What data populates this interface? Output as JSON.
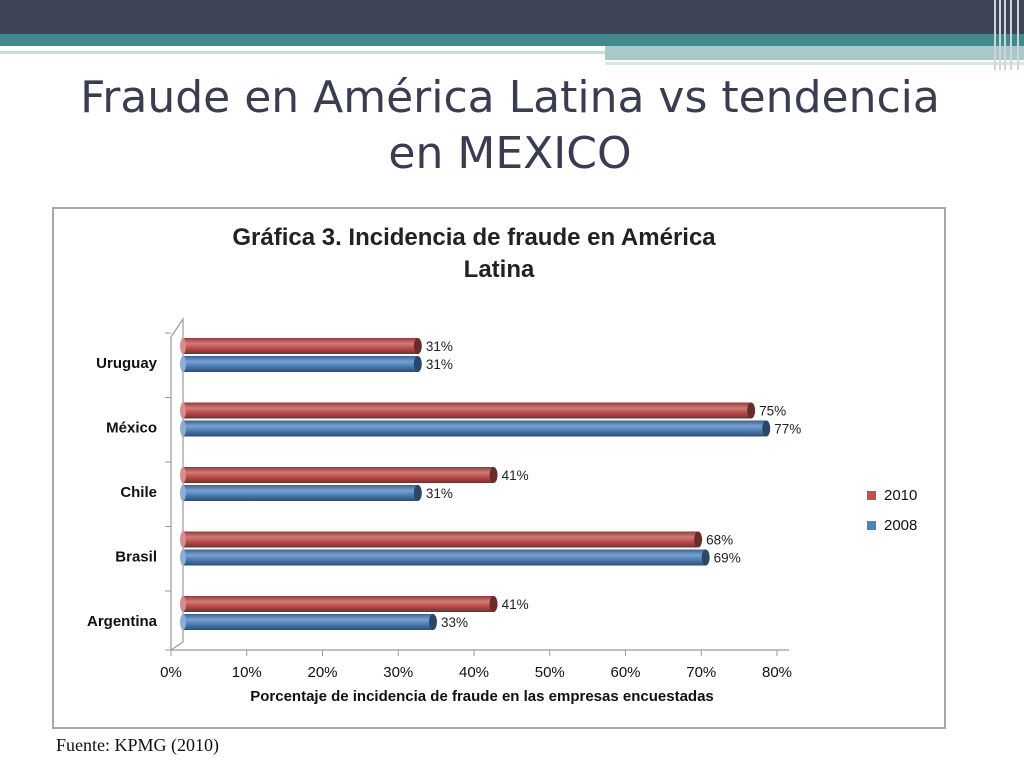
{
  "slide": {
    "title_line1": "Fraude en América Latina vs tendencia",
    "title_line2": "en MEXICO",
    "source": "Fuente: KPMG (2010)"
  },
  "chart_data": {
    "type": "bar",
    "orientation": "horizontal",
    "title_line1": "Gráfica 3. Incidencia de fraude en América",
    "title_line2": "Latina",
    "xlabel": "Porcentaje de incidencia de fraude en las empresas encuestadas",
    "ylabel": "",
    "xlim": [
      0,
      80
    ],
    "xticks": [
      "0%",
      "10%",
      "20%",
      "30%",
      "40%",
      "50%",
      "60%",
      "70%",
      "80%"
    ],
    "categories": [
      "Uruguay",
      "México",
      "Chile",
      "Brasil",
      "Argentina"
    ],
    "series": [
      {
        "name": "2010",
        "color": "#c0504d",
        "values": [
          31,
          75,
          41,
          68,
          41
        ],
        "labels": [
          "31%",
          "75%",
          "41%",
          "68%",
          "41%"
        ]
      },
      {
        "name": "2008",
        "color": "#4f81bd",
        "values": [
          31,
          77,
          31,
          69,
          33
        ],
        "labels": [
          "31%",
          "77%",
          "31%",
          "69%",
          "33%"
        ]
      }
    ],
    "legend_position": "right",
    "grid": false
  }
}
